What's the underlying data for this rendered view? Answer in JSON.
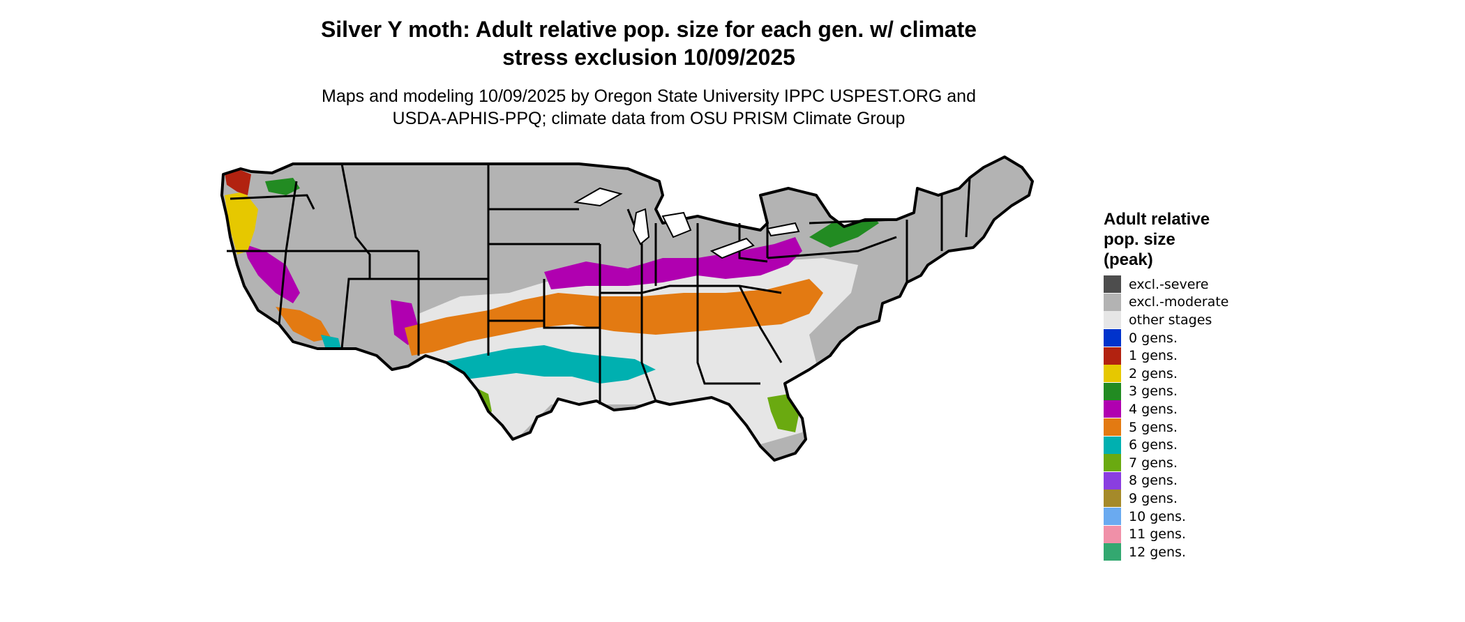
{
  "title": {
    "line1": "Silver Y moth: Adult relative pop. size for each gen. w/ climate",
    "line2": "stress exclusion 10/09/2025"
  },
  "subtitle": {
    "line1": "Maps and modeling 10/09/2025 by Oregon State University IPPC USPEST.ORG and",
    "line2": "USDA-APHIS-PPQ; climate data from OSU PRISM Climate Group"
  },
  "legend": {
    "title_lines": [
      "Adult relative",
      "pop. size",
      "(peak)"
    ],
    "items": [
      {
        "label": "excl.-severe",
        "color": "#4d4d4d"
      },
      {
        "label": "excl.-moderate",
        "color": "#b3b3b3"
      },
      {
        "label": "other stages",
        "color": "#e6e6e6"
      },
      {
        "label": "0 gens.",
        "color": "#0033cc"
      },
      {
        "label": "1 gens.",
        "color": "#b22210"
      },
      {
        "label": "2 gens.",
        "color": "#e6c800"
      },
      {
        "label": "3 gens.",
        "color": "#228b22"
      },
      {
        "label": "4 gens.",
        "color": "#b000b0"
      },
      {
        "label": "5 gens.",
        "color": "#e37a12"
      },
      {
        "label": "6 gens.",
        "color": "#00b0b0"
      },
      {
        "label": "7 gens.",
        "color": "#6aaa10"
      },
      {
        "label": "8 gens.",
        "color": "#8a3ee0"
      },
      {
        "label": "9 gens.",
        "color": "#a58a2a"
      },
      {
        "label": "10 gens.",
        "color": "#6aaaf0"
      },
      {
        "label": "11 gens.",
        "color": "#f090a8"
      },
      {
        "label": "12 gens.",
        "color": "#33a870"
      }
    ]
  },
  "map": {
    "colors": {
      "exclModerate": "#b3b3b3",
      "otherStages": "#e6e6e6",
      "gen1": "#b22210",
      "gen2": "#e6c800",
      "gen3": "#228b22",
      "gen4": "#b000b0",
      "gen5": "#e37a12",
      "gen6": "#00b0b0",
      "gen7": "#6aaa10",
      "border": "#000000"
    }
  }
}
